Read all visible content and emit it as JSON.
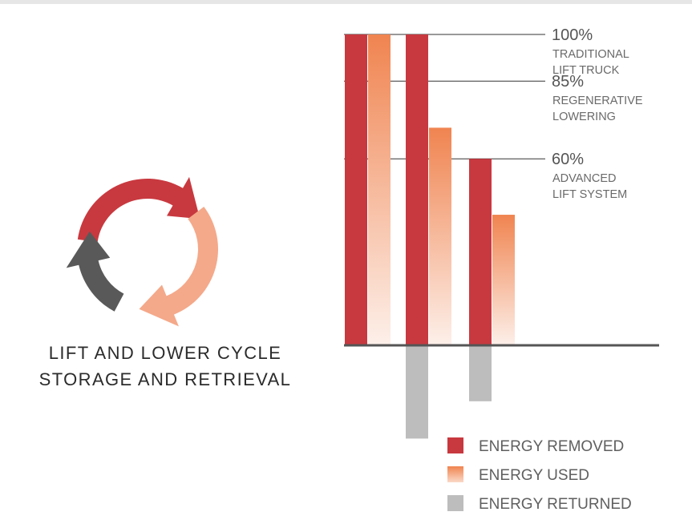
{
  "diagram": {
    "caption_lines": [
      "LIFT AND LOWER CYCLE",
      "STORAGE AND RETRIEVAL"
    ],
    "arrow_colors": [
      "#c8393f",
      "#f4a98a",
      "#595959"
    ],
    "icon": "cycle-arrows-icon"
  },
  "colors": {
    "energy_removed": "#c8393f",
    "energy_used_top": "#f08450",
    "energy_used_bottom": "#fdf0ea",
    "energy_returned": "#bdbdbd",
    "baseline": "#555555",
    "reference_line": "#333333"
  },
  "chart_data": {
    "type": "bar",
    "title": "",
    "xlabel": "",
    "ylabel": "",
    "ylim": [
      -30,
      100
    ],
    "reference_lines": [
      {
        "value": 100,
        "percent_label": "100%",
        "label_lines": [
          "TRADITIONAL",
          "LIFT TRUCK"
        ]
      },
      {
        "value": 85,
        "percent_label": "85%",
        "label_lines": [
          "REGENERATIVE",
          "LOWERING"
        ]
      },
      {
        "value": 60,
        "percent_label": "60%",
        "label_lines": [
          "ADVANCED",
          "LIFT SYSTEM"
        ]
      }
    ],
    "groups": [
      {
        "energy_removed": 100,
        "energy_used": 100,
        "energy_returned": 0
      },
      {
        "energy_removed": 100,
        "energy_used": 70,
        "energy_returned": -30
      },
      {
        "energy_removed": 60,
        "energy_used": 42,
        "energy_returned": -18
      }
    ],
    "legend": [
      {
        "key": "energy_removed",
        "label": "ENERGY REMOVED"
      },
      {
        "key": "energy_used",
        "label": "ENERGY USED"
      },
      {
        "key": "energy_returned",
        "label": "ENERGY RETURNED"
      }
    ],
    "legend_position": "bottom-right",
    "grid": false
  }
}
